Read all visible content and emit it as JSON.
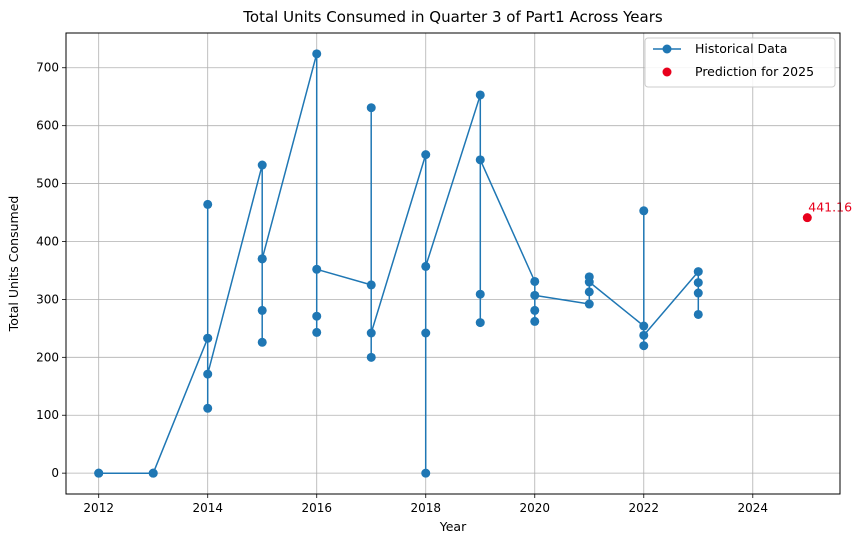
{
  "chart_data": {
    "type": "line",
    "title": "Total Units Consumed in Quarter 3 of Part1 Across Years",
    "xlabel": "Year",
    "ylabel": "Total Units Consumed",
    "xlim": [
      2011.4,
      2025.6
    ],
    "ylim": [
      -36,
      760
    ],
    "xticks": [
      2012,
      2014,
      2016,
      2018,
      2020,
      2022,
      2024
    ],
    "yticks": [
      0,
      100,
      200,
      300,
      400,
      500,
      600,
      700
    ],
    "grid": true,
    "legend_position": "top-right",
    "series": [
      {
        "name": "Historical Data",
        "color": "#1f77b4",
        "marker": "circle",
        "points": [
          [
            2012,
            0
          ],
          [
            2012,
            0
          ],
          [
            2013,
            0
          ],
          [
            2013,
            0
          ],
          [
            2014,
            233
          ],
          [
            2014,
            112
          ],
          [
            2014,
            464
          ],
          [
            2014,
            233
          ],
          [
            2014,
            171
          ],
          [
            2015,
            532
          ],
          [
            2015,
            370
          ],
          [
            2015,
            226
          ],
          [
            2015,
            281
          ],
          [
            2015,
            370
          ],
          [
            2016,
            724
          ],
          [
            2016,
            243
          ],
          [
            2016,
            271
          ],
          [
            2016,
            352
          ],
          [
            2017,
            325
          ],
          [
            2017,
            200
          ],
          [
            2017,
            631
          ],
          [
            2017,
            242
          ],
          [
            2018,
            550
          ],
          [
            2018,
            0
          ],
          [
            2018,
            242
          ],
          [
            2018,
            357
          ],
          [
            2019,
            653
          ],
          [
            2019,
            260
          ],
          [
            2019,
            309
          ],
          [
            2019,
            541
          ],
          [
            2020,
            331
          ],
          [
            2020,
            281
          ],
          [
            2020,
            262
          ],
          [
            2020,
            307
          ],
          [
            2021,
            292
          ],
          [
            2021,
            339
          ],
          [
            2021,
            313
          ],
          [
            2021,
            330
          ],
          [
            2022,
            254
          ],
          [
            2022,
            220
          ],
          [
            2022,
            453
          ],
          [
            2022,
            238
          ],
          [
            2023,
            348
          ],
          [
            2023,
            274
          ],
          [
            2023,
            311
          ],
          [
            2023,
            329
          ]
        ]
      },
      {
        "name": "Prediction for 2025",
        "color": "#e8001c",
        "marker": "circle",
        "points": [
          [
            2025,
            441.16
          ]
        ]
      }
    ],
    "annotations": [
      {
        "text": "441.16",
        "x": 2025,
        "y": 441.16,
        "color": "#e8001c"
      }
    ]
  }
}
